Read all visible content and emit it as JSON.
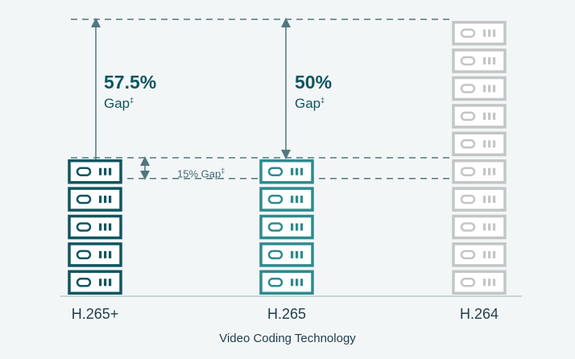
{
  "chart_data": {
    "type": "bar",
    "categories": [
      "H.265+",
      "H.265",
      "H.264"
    ],
    "values": [
      4.25,
      5,
      10
    ],
    "unit_note": "stacked server icons (relative bandwidth/storage)",
    "xlabel": "Video Coding Technology",
    "ylabel": "",
    "ylim": [
      0,
      10
    ],
    "colors": [
      "#0f5560",
      "#2e8a8f",
      "#c5c5c5"
    ],
    "annotations": [
      {
        "value": "57.5%",
        "text": "Gap",
        "mark": "‡",
        "between": [
          "H.265+",
          "H.264"
        ]
      },
      {
        "value": "50%",
        "text": "Gap",
        "mark": "‡",
        "between": [
          "H.265",
          "H.264"
        ]
      },
      {
        "value": "15% Gap",
        "mark": "‡",
        "between": [
          "H.265+",
          "H.265"
        ]
      }
    ]
  }
}
